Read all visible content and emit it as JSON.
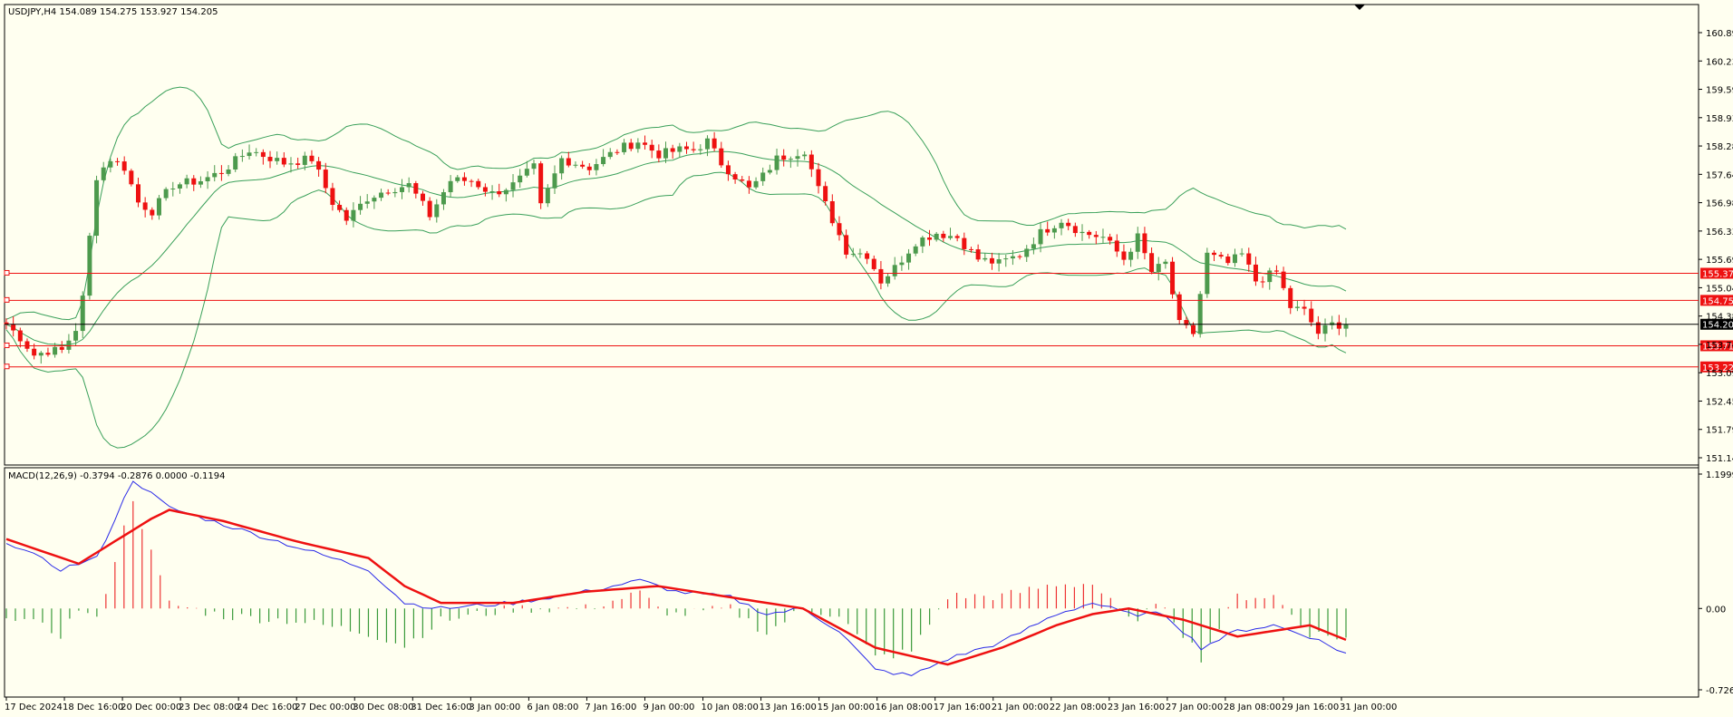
{
  "chart_data": [
    {
      "type": "candlestick",
      "title": "USDJPY,H4",
      "ohlc_label": "154.089 154.275 153.927 154.205",
      "y_ticks": [
        "160.890",
        "160.235",
        "159.590",
        "158.930",
        "158.285",
        "157.640",
        "156.980",
        "156.335",
        "155.690",
        "155.045",
        "154.385",
        "153.740",
        "153.095",
        "152.450",
        "151.790",
        "151.145"
      ],
      "ylim": [
        151.145,
        160.89
      ],
      "x_ticks": [
        "17 Dec 2024",
        "18 Dec 16:00",
        "20 Dec 00:00",
        "23 Dec 08:00",
        "24 Dec 16:00",
        "27 Dec 00:00",
        "30 Dec 08:00",
        "31 Dec 16:00",
        "3 Jan 00:00",
        "6 Jan 08:00",
        "7 Jan 16:00",
        "9 Jan 00:00",
        "10 Jan 08:00",
        "13 Jan 16:00",
        "15 Jan 00:00",
        "16 Jan 08:00",
        "17 Jan 16:00",
        "21 Jan 00:00",
        "22 Jan 08:00",
        "23 Jan 16:00",
        "27 Jan 00:00",
        "28 Jan 08:00",
        "29 Jan 16:00",
        "31 Jan 00:00"
      ],
      "current_price": "154.205",
      "levels": [
        {
          "value": 155.374,
          "label": "155.374"
        },
        {
          "value": 154.753,
          "label": "154.753"
        },
        {
          "value": 153.712,
          "label": "153.712"
        },
        {
          "value": 153.228,
          "label": "153.228"
        }
      ],
      "anchors": [
        [
          0,
          154.2
        ],
        [
          2,
          153.9
        ],
        [
          4,
          153.5
        ],
        [
          6,
          153.6
        ],
        [
          8,
          153.6
        ],
        [
          10,
          154.1
        ],
        [
          11,
          154.8
        ],
        [
          13,
          157.6
        ],
        [
          15,
          158.0
        ],
        [
          17,
          157.8
        ],
        [
          19,
          157.0
        ],
        [
          21,
          156.8
        ],
        [
          24,
          157.4
        ],
        [
          28,
          157.5
        ],
        [
          31,
          157.7
        ],
        [
          35,
          158.2
        ],
        [
          40,
          157.9
        ],
        [
          44,
          158.0
        ],
        [
          47,
          157.0
        ],
        [
          49,
          156.6
        ],
        [
          52,
          157.1
        ],
        [
          55,
          157.3
        ],
        [
          58,
          157.4
        ],
        [
          61,
          156.7
        ],
        [
          64,
          157.5
        ],
        [
          67,
          157.5
        ],
        [
          70,
          157.2
        ],
        [
          73,
          157.4
        ],
        [
          76,
          157.8
        ],
        [
          77,
          156.9
        ],
        [
          80,
          158.0
        ],
        [
          84,
          157.8
        ],
        [
          88,
          158.2
        ],
        [
          91,
          158.4
        ],
        [
          94,
          158.1
        ],
        [
          97,
          158.2
        ],
        [
          99,
          158.2
        ],
        [
          101,
          158.4
        ],
        [
          103,
          157.9
        ],
        [
          105,
          157.6
        ],
        [
          107,
          157.3
        ],
        [
          109,
          157.6
        ],
        [
          111,
          158.0
        ],
        [
          113,
          158.1
        ],
        [
          115,
          158.2
        ],
        [
          117,
          157.3
        ],
        [
          119,
          156.6
        ],
        [
          121,
          155.9
        ],
        [
          124,
          155.8
        ],
        [
          126,
          155.2
        ],
        [
          128,
          155.5
        ],
        [
          131,
          156.1
        ],
        [
          134,
          156.3
        ],
        [
          137,
          156.2
        ],
        [
          140,
          155.7
        ],
        [
          143,
          155.6
        ],
        [
          146,
          155.8
        ],
        [
          149,
          156.3
        ],
        [
          152,
          156.6
        ],
        [
          155,
          156.3
        ],
        [
          158,
          156.2
        ],
        [
          161,
          155.7
        ],
        [
          163,
          156.2
        ],
        [
          165,
          155.4
        ],
        [
          167,
          155.6
        ],
        [
          169,
          154.2
        ],
        [
          171,
          154.0
        ],
        [
          173,
          155.8
        ],
        [
          176,
          155.6
        ],
        [
          178,
          155.8
        ],
        [
          180,
          155.2
        ],
        [
          183,
          155.4
        ],
        [
          185,
          154.6
        ],
        [
          187,
          154.5
        ],
        [
          189,
          154.0
        ],
        [
          191,
          154.2
        ],
        [
          193,
          154.205
        ]
      ],
      "macd_label": "MACD(12,26,9) -0.3794 -0.2876 0.0000 -0.1194",
      "macd_y_ticks": [
        "1.1999",
        "0.00",
        "-0.726"
      ],
      "macd_range": [
        -0.726,
        1.1999
      ],
      "macd_anchors": [
        [
          0,
          0.6
        ],
        [
          6,
          0.35
        ],
        [
          10,
          0.45
        ],
        [
          14,
          1.15
        ],
        [
          18,
          0.9
        ],
        [
          24,
          0.75
        ],
        [
          32,
          0.55
        ],
        [
          40,
          0.35
        ],
        [
          44,
          0.05
        ],
        [
          48,
          0.0
        ],
        [
          56,
          0.05
        ],
        [
          64,
          0.15
        ],
        [
          70,
          0.25
        ],
        [
          74,
          0.15
        ],
        [
          80,
          0.1
        ],
        [
          84,
          -0.05
        ],
        [
          88,
          0.0
        ],
        [
          92,
          -0.2
        ],
        [
          96,
          -0.55
        ],
        [
          100,
          -0.6
        ],
        [
          104,
          -0.45
        ],
        [
          110,
          -0.3
        ],
        [
          116,
          -0.05
        ],
        [
          120,
          0.05
        ],
        [
          124,
          -0.05
        ],
        [
          128,
          -0.05
        ],
        [
          132,
          -0.35
        ],
        [
          136,
          -0.2
        ],
        [
          140,
          -0.15
        ],
        [
          144,
          -0.25
        ],
        [
          148,
          -0.4
        ]
      ],
      "macd_signal_anchors": [
        [
          0,
          0.62
        ],
        [
          8,
          0.4
        ],
        [
          16,
          0.8
        ],
        [
          18,
          0.88
        ],
        [
          24,
          0.78
        ],
        [
          32,
          0.6
        ],
        [
          40,
          0.45
        ],
        [
          44,
          0.2
        ],
        [
          48,
          0.05
        ],
        [
          56,
          0.05
        ],
        [
          64,
          0.15
        ],
        [
          72,
          0.2
        ],
        [
          80,
          0.1
        ],
        [
          88,
          0.0
        ],
        [
          96,
          -0.35
        ],
        [
          104,
          -0.5
        ],
        [
          110,
          -0.35
        ],
        [
          116,
          -0.15
        ],
        [
          120,
          -0.05
        ],
        [
          124,
          0.0
        ],
        [
          130,
          -0.1
        ],
        [
          136,
          -0.25
        ],
        [
          140,
          -0.2
        ],
        [
          144,
          -0.15
        ],
        [
          148,
          -0.28
        ]
      ]
    }
  ],
  "colors": {
    "background": "#fffff0",
    "bull_candle": "#4d9a4d",
    "bear_candle": "#ee1111",
    "band": "#3aa05a",
    "level_line": "#ee1111",
    "price_line": "#000000",
    "macd_main": "#2a2ae8",
    "macd_signal": "#ee1111",
    "hist_pos": "#ee3333",
    "hist_neg": "#3a9a3a"
  }
}
